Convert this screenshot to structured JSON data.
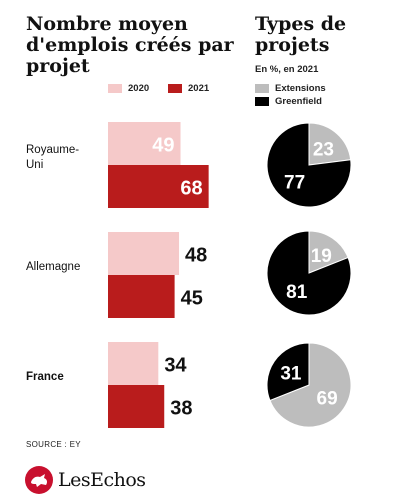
{
  "chart_data": [
    {
      "type": "bar",
      "title": "Nombre moyen d'emplois créés par projet",
      "categories": [
        "Royaume-Uni",
        "Allemagne",
        "France"
      ],
      "series": [
        {
          "name": "2020",
          "values": [
            49,
            48,
            34
          ],
          "color": "#f5c9c9"
        },
        {
          "name": "2021",
          "values": [
            68,
            45,
            38
          ],
          "color": "#b91c1c"
        }
      ],
      "orientation": "horizontal",
      "legend_position": "top"
    },
    {
      "type": "pie",
      "title": "Types de projets",
      "subtitle": "En %, en 2021",
      "legend": [
        {
          "name": "Extensions",
          "color": "#bdbdbd"
        },
        {
          "name": "Greenfield",
          "color": "#000000"
        }
      ],
      "pies": [
        {
          "category": "Royaume-Uni",
          "extensions": 23,
          "greenfield": 77
        },
        {
          "category": "Allemagne",
          "extensions": 19,
          "greenfield": 81
        },
        {
          "category": "France",
          "extensions": 69,
          "greenfield": 31
        }
      ]
    }
  ],
  "source": "SOURCE : EY",
  "brand": "LesEchos"
}
